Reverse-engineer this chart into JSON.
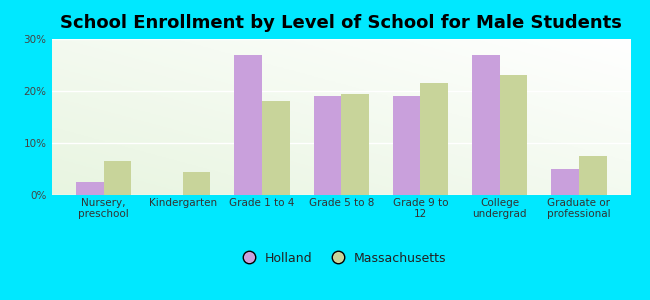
{
  "title": "School Enrollment by Level of School for Male Students",
  "categories": [
    "Nursery,\npreschool",
    "Kindergarten",
    "Grade 1 to 4",
    "Grade 5 to 8",
    "Grade 9 to\n12",
    "College\nundergrad",
    "Graduate or\nprofessional"
  ],
  "holland_values": [
    2.5,
    0,
    27.0,
    19.0,
    19.0,
    27.0,
    5.0
  ],
  "massachusetts_values": [
    6.5,
    4.5,
    18.0,
    19.5,
    21.5,
    23.0,
    7.5
  ],
  "holland_color": "#c9a0dc",
  "massachusetts_color": "#c8d49a",
  "background_outer": "#00e8ff",
  "background_inner_topleft": "#e8f5e0",
  "background_inner_bottomright": "#ffffff",
  "ylim": [
    0,
    30
  ],
  "yticks": [
    0,
    10,
    20,
    30
  ],
  "ytick_labels": [
    "0%",
    "10%",
    "20%",
    "30%"
  ],
  "bar_width": 0.35,
  "legend_labels": [
    "Holland",
    "Massachusetts"
  ],
  "title_fontsize": 13,
  "tick_fontsize": 7.5,
  "legend_fontsize": 9
}
